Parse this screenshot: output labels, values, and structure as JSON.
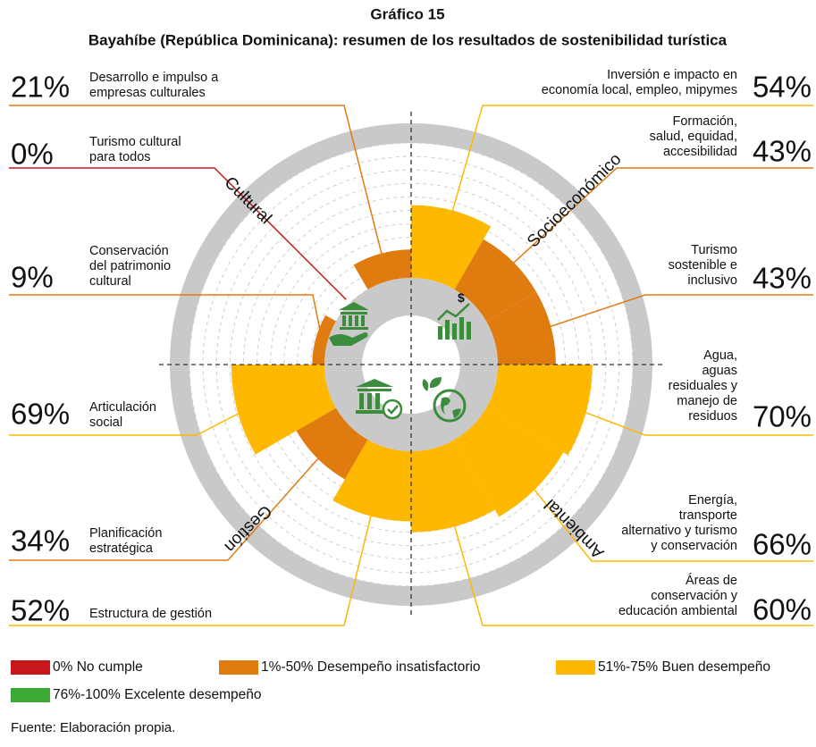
{
  "chart_data": {
    "type": "polar_bar",
    "title": "Gráfico 15",
    "subtitle": "Bayahíbe (República Dominicana): resumen de los resultados de sostenibilidad turística",
    "categories": [
      [
        "Inversión e impacto en",
        "economía local, empleo, mipymes"
      ],
      [
        "Formación,",
        "salud, equidad,",
        "accesibilidad"
      ],
      [
        "Turismo",
        "sostenible e",
        "inclusivo"
      ],
      [
        "Agua,",
        "aguas",
        "residuales y",
        "manejo de",
        "residuos"
      ],
      [
        "Energía,",
        "transporte",
        "alternativo y turismo",
        "y conservación"
      ],
      [
        "Áreas de",
        "conservación y",
        "educación ambiental"
      ],
      [
        "Estructura de gestión"
      ],
      [
        "Planificación",
        "estratégica"
      ],
      [
        "Articulación",
        "social"
      ],
      [
        "Conservación",
        "del patrimonio",
        "cultural"
      ],
      [
        "Turismo cultural",
        "para todos"
      ],
      [
        "Desarrollo e impulso a",
        "empresas culturales"
      ]
    ],
    "values": [
      54,
      43,
      43,
      70,
      66,
      60,
      52,
      34,
      69,
      9,
      0,
      21
    ],
    "value_labels": [
      "54%",
      "43%",
      "43%",
      "70%",
      "66%",
      "60%",
      "52%",
      "34%",
      "69%",
      "9%",
      "0%",
      "21%"
    ],
    "colors": [
      "#ffb800",
      "#e07b10",
      "#e07b10",
      "#ffb800",
      "#ffb800",
      "#ffb800",
      "#ffb800",
      "#e07b10",
      "#ffb800",
      "#e07b10",
      "#c8161d",
      "#e07b10"
    ],
    "groups": [
      "Socioeconómico",
      "Ambiental",
      "Gestión",
      "Cultural"
    ],
    "ylim": [
      0,
      100
    ],
    "yticks": [
      0,
      10,
      20,
      30,
      40,
      50,
      60,
      70,
      80,
      90,
      100
    ],
    "legend": [
      {
        "label": "0% No cumple",
        "color": "#c8161d"
      },
      {
        "label": "1%-50% Desempeño insatisfactorio",
        "color": "#e07b10"
      },
      {
        "label": "51%-75% Buen desempeño",
        "color": "#ffb800"
      },
      {
        "label": "76%-100% Excelente desempeño",
        "color": "#3aaa35"
      }
    ],
    "source": "Fuente: Elaboración propia."
  }
}
